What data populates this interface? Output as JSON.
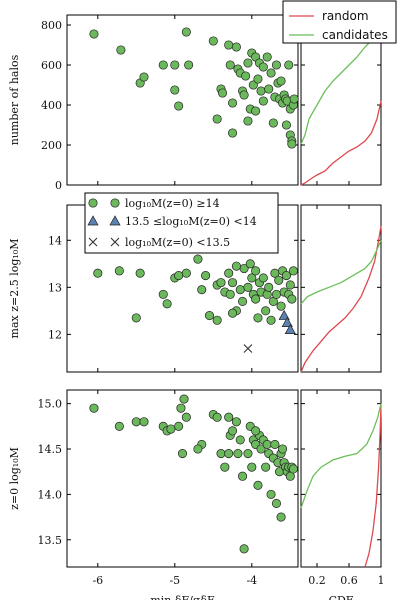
{
  "chart_data": {
    "type": "scatter",
    "colors": {
      "candidates": "#6bbf59",
      "random": "#e0474c",
      "point_fill": "#6cb85c",
      "triangle_fill": "#5b82b0",
      "cross": "#333333"
    },
    "legend_top": {
      "placement": "top-right",
      "entries": [
        "random",
        "candidates"
      ]
    },
    "legend_mid": {
      "placement": "top",
      "entries": [
        "log₁₀M(z=0) ≥14",
        "13.5 ≤log₁₀M(z=0) <14",
        "log₁₀M(z=0) <13.5"
      ]
    },
    "x_axis": {
      "label": "min  δF/σδF",
      "ticks": [
        -6,
        -5,
        -4
      ],
      "tick_labels": [
        "-6",
        "-5",
        "-4"
      ],
      "range": [
        -6.4,
        -3.4
      ]
    },
    "cdf_axis": {
      "label": "CDF",
      "ticks": [
        0.2,
        0.6,
        1
      ],
      "tick_labels": [
        "0.2",
        "0.6",
        "1"
      ],
      "range": [
        0,
        1
      ]
    },
    "panels": [
      {
        "ylabel": "number of halos",
        "yrange": [
          0,
          850
        ],
        "yticks": [
          0,
          200,
          400,
          600,
          800
        ],
        "ytick_labels": [
          "0",
          "200",
          "400",
          "600",
          "800"
        ],
        "points": [
          [
            -6.05,
            755
          ],
          [
            -5.7,
            675
          ],
          [
            -5.45,
            510
          ],
          [
            -5.4,
            540
          ],
          [
            -5.15,
            600
          ],
          [
            -5.0,
            600
          ],
          [
            -4.95,
            395
          ],
          [
            -5.0,
            475
          ],
          [
            -4.85,
            765
          ],
          [
            -4.82,
            600
          ],
          [
            -4.5,
            720
          ],
          [
            -4.4,
            480
          ],
          [
            -4.38,
            460
          ],
          [
            -4.3,
            700
          ],
          [
            -4.28,
            600
          ],
          [
            -4.25,
            410
          ],
          [
            -4.2,
            690
          ],
          [
            -4.18,
            580
          ],
          [
            -4.15,
            560
          ],
          [
            -4.12,
            470
          ],
          [
            -4.1,
            450
          ],
          [
            -4.08,
            545
          ],
          [
            -4.05,
            610
          ],
          [
            -4.02,
            380
          ],
          [
            -4.0,
            660
          ],
          [
            -3.98,
            500
          ],
          [
            -3.95,
            640
          ],
          [
            -3.92,
            530
          ],
          [
            -3.9,
            610
          ],
          [
            -3.88,
            470
          ],
          [
            -3.85,
            590
          ],
          [
            -3.85,
            420
          ],
          [
            -3.8,
            640
          ],
          [
            -3.78,
            480
          ],
          [
            -3.75,
            560
          ],
          [
            -3.72,
            310
          ],
          [
            -3.7,
            440
          ],
          [
            -3.68,
            600
          ],
          [
            -3.66,
            510
          ],
          [
            -3.64,
            430
          ],
          [
            -3.62,
            520
          ],
          [
            -3.6,
            410
          ],
          [
            -3.58,
            450
          ],
          [
            -3.56,
            430
          ],
          [
            -3.55,
            300
          ],
          [
            -3.54,
            420
          ],
          [
            -3.52,
            600
          ],
          [
            -3.5,
            380
          ],
          [
            -3.5,
            250
          ],
          [
            -3.48,
            220
          ],
          [
            -3.48,
            205
          ],
          [
            -3.46,
            400
          ],
          [
            -3.45,
            430
          ],
          [
            -4.25,
            260
          ],
          [
            -4.05,
            320
          ],
          [
            -4.45,
            330
          ],
          [
            -3.95,
            370
          ]
        ],
        "cdf_random": [
          [
            0,
            0
          ],
          [
            0.05,
            10
          ],
          [
            0.12,
            30
          ],
          [
            0.2,
            50
          ],
          [
            0.3,
            70
          ],
          [
            0.4,
            110
          ],
          [
            0.5,
            140
          ],
          [
            0.6,
            170
          ],
          [
            0.7,
            190
          ],
          [
            0.8,
            220
          ],
          [
            0.88,
            260
          ],
          [
            0.95,
            330
          ],
          [
            1,
            420
          ]
        ],
        "cdf_candidates": [
          [
            0,
            205
          ],
          [
            0.05,
            250
          ],
          [
            0.1,
            330
          ],
          [
            0.2,
            400
          ],
          [
            0.3,
            470
          ],
          [
            0.4,
            520
          ],
          [
            0.5,
            560
          ],
          [
            0.6,
            600
          ],
          [
            0.7,
            640
          ],
          [
            0.8,
            690
          ],
          [
            0.9,
            730
          ],
          [
            0.95,
            760
          ],
          [
            1,
            790
          ]
        ]
      },
      {
        "ylabel": "max z=2.5  log₁₀M",
        "yrange": [
          11.2,
          14.75
        ],
        "yticks": [
          12,
          13,
          14
        ],
        "ytick_labels": [
          "12",
          "13",
          "14"
        ],
        "points": [
          [
            -6.0,
            13.3
          ],
          [
            -5.72,
            13.35
          ],
          [
            -5.45,
            13.3
          ],
          [
            -5.4,
            14.0
          ],
          [
            -5.15,
            12.85
          ],
          [
            -5.1,
            12.65
          ],
          [
            -5.0,
            13.2
          ],
          [
            -4.95,
            13.25
          ],
          [
            -4.85,
            13.3
          ],
          [
            -4.7,
            13.6
          ],
          [
            -4.65,
            12.95
          ],
          [
            -4.6,
            13.25
          ],
          [
            -4.45,
            13.05
          ],
          [
            -4.4,
            13.1
          ],
          [
            -4.35,
            12.9
          ],
          [
            -4.3,
            13.3
          ],
          [
            -4.28,
            12.85
          ],
          [
            -4.25,
            13.1
          ],
          [
            -4.2,
            12.5
          ],
          [
            -4.15,
            12.95
          ],
          [
            -4.12,
            12.7
          ],
          [
            -4.1,
            13.4
          ],
          [
            -4.05,
            13.0
          ],
          [
            -4.02,
            13.5
          ],
          [
            -4.0,
            13.2
          ],
          [
            -3.98,
            12.85
          ],
          [
            -3.95,
            13.35
          ],
          [
            -3.92,
            12.35
          ],
          [
            -3.9,
            13.1
          ],
          [
            -3.88,
            12.9
          ],
          [
            -3.85,
            13.2
          ],
          [
            -3.82,
            12.5
          ],
          [
            -3.8,
            12.85
          ],
          [
            -3.78,
            13.0
          ],
          [
            -3.75,
            12.3
          ],
          [
            -3.72,
            12.7
          ],
          [
            -3.7,
            13.3
          ],
          [
            -3.68,
            12.85
          ],
          [
            -3.65,
            13.15
          ],
          [
            -3.62,
            12.6
          ],
          [
            -3.6,
            13.35
          ],
          [
            -3.58,
            12.9
          ],
          [
            -3.55,
            13.25
          ],
          [
            -3.52,
            12.85
          ],
          [
            -3.5,
            13.05
          ],
          [
            -3.48,
            12.75
          ],
          [
            -3.46,
            13.35
          ],
          [
            -4.55,
            12.4
          ],
          [
            -4.45,
            12.3
          ],
          [
            -5.5,
            12.35
          ],
          [
            -4.2,
            13.45
          ],
          [
            -3.95,
            12.75
          ],
          [
            -4.25,
            12.45
          ]
        ],
        "triangles": [
          [
            -3.58,
            12.4
          ],
          [
            -3.54,
            12.25
          ],
          [
            -3.5,
            12.1
          ]
        ],
        "crosses": [
          [
            -4.05,
            11.7
          ]
        ],
        "cdf_random": [
          [
            0,
            11.2
          ],
          [
            0.05,
            11.4
          ],
          [
            0.15,
            11.65
          ],
          [
            0.25,
            11.85
          ],
          [
            0.35,
            12.05
          ],
          [
            0.45,
            12.2
          ],
          [
            0.55,
            12.35
          ],
          [
            0.65,
            12.55
          ],
          [
            0.75,
            12.8
          ],
          [
            0.85,
            13.2
          ],
          [
            0.92,
            13.55
          ],
          [
            0.97,
            14.0
          ],
          [
            1,
            14.3
          ]
        ],
        "cdf_candidates": [
          [
            0,
            12.65
          ],
          [
            0.08,
            12.8
          ],
          [
            0.2,
            12.9
          ],
          [
            0.35,
            13.0
          ],
          [
            0.5,
            13.1
          ],
          [
            0.6,
            13.2
          ],
          [
            0.7,
            13.3
          ],
          [
            0.8,
            13.4
          ],
          [
            0.88,
            13.55
          ],
          [
            0.95,
            13.8
          ],
          [
            1,
            14.0
          ]
        ]
      },
      {
        "ylabel": "z=0  log₁₀M",
        "yrange": [
          13.2,
          15.15
        ],
        "yticks": [
          13.5,
          14.0,
          14.5,
          15.0
        ],
        "ytick_labels": [
          "13.5",
          "14.0",
          "14.5",
          "15.0"
        ],
        "points": [
          [
            -6.05,
            14.95
          ],
          [
            -5.72,
            14.75
          ],
          [
            -5.5,
            14.8
          ],
          [
            -5.4,
            14.8
          ],
          [
            -5.15,
            14.75
          ],
          [
            -5.1,
            14.7
          ],
          [
            -5.05,
            14.72
          ],
          [
            -4.95,
            14.75
          ],
          [
            -4.92,
            14.95
          ],
          [
            -4.88,
            15.05
          ],
          [
            -4.85,
            14.85
          ],
          [
            -4.5,
            14.88
          ],
          [
            -4.45,
            14.85
          ],
          [
            -4.4,
            14.45
          ],
          [
            -4.35,
            14.3
          ],
          [
            -4.3,
            14.45
          ],
          [
            -4.28,
            14.65
          ],
          [
            -4.25,
            14.7
          ],
          [
            -4.2,
            14.8
          ],
          [
            -4.18,
            14.45
          ],
          [
            -4.15,
            14.6
          ],
          [
            -4.12,
            14.2
          ],
          [
            -4.1,
            13.4
          ],
          [
            -4.05,
            14.45
          ],
          [
            -4.02,
            14.75
          ],
          [
            -4.0,
            14.3
          ],
          [
            -3.98,
            14.6
          ],
          [
            -3.95,
            14.55
          ],
          [
            -3.92,
            14.1
          ],
          [
            -3.9,
            14.65
          ],
          [
            -3.88,
            14.5
          ],
          [
            -3.85,
            14.6
          ],
          [
            -3.82,
            14.3
          ],
          [
            -3.8,
            14.55
          ],
          [
            -3.78,
            14.45
          ],
          [
            -3.75,
            14.0
          ],
          [
            -3.72,
            14.4
          ],
          [
            -3.7,
            14.55
          ],
          [
            -3.68,
            13.9
          ],
          [
            -3.66,
            14.35
          ],
          [
            -3.64,
            14.25
          ],
          [
            -3.62,
            14.45
          ],
          [
            -3.6,
            14.5
          ],
          [
            -3.58,
            14.35
          ],
          [
            -3.56,
            14.3
          ],
          [
            -3.54,
            14.25
          ],
          [
            -3.52,
            14.3
          ],
          [
            -3.5,
            14.2
          ],
          [
            -3.48,
            14.3
          ],
          [
            -3.46,
            14.28
          ],
          [
            -3.62,
            13.75
          ],
          [
            -4.65,
            14.55
          ],
          [
            -4.9,
            14.45
          ],
          [
            -4.7,
            14.5
          ],
          [
            -4.3,
            14.85
          ],
          [
            -3.95,
            14.7
          ]
        ],
        "cdf_random": [
          [
            0.8,
            13.2
          ],
          [
            0.85,
            13.35
          ],
          [
            0.9,
            13.6
          ],
          [
            0.94,
            13.9
          ],
          [
            0.97,
            14.3
          ],
          [
            0.99,
            14.7
          ],
          [
            1,
            15.0
          ]
        ],
        "cdf_candidates": [
          [
            0,
            13.85
          ],
          [
            0.08,
            14.05
          ],
          [
            0.15,
            14.2
          ],
          [
            0.25,
            14.3
          ],
          [
            0.4,
            14.38
          ],
          [
            0.55,
            14.42
          ],
          [
            0.7,
            14.45
          ],
          [
            0.82,
            14.55
          ],
          [
            0.9,
            14.7
          ],
          [
            0.96,
            14.85
          ],
          [
            1,
            15.0
          ]
        ]
      }
    ]
  }
}
